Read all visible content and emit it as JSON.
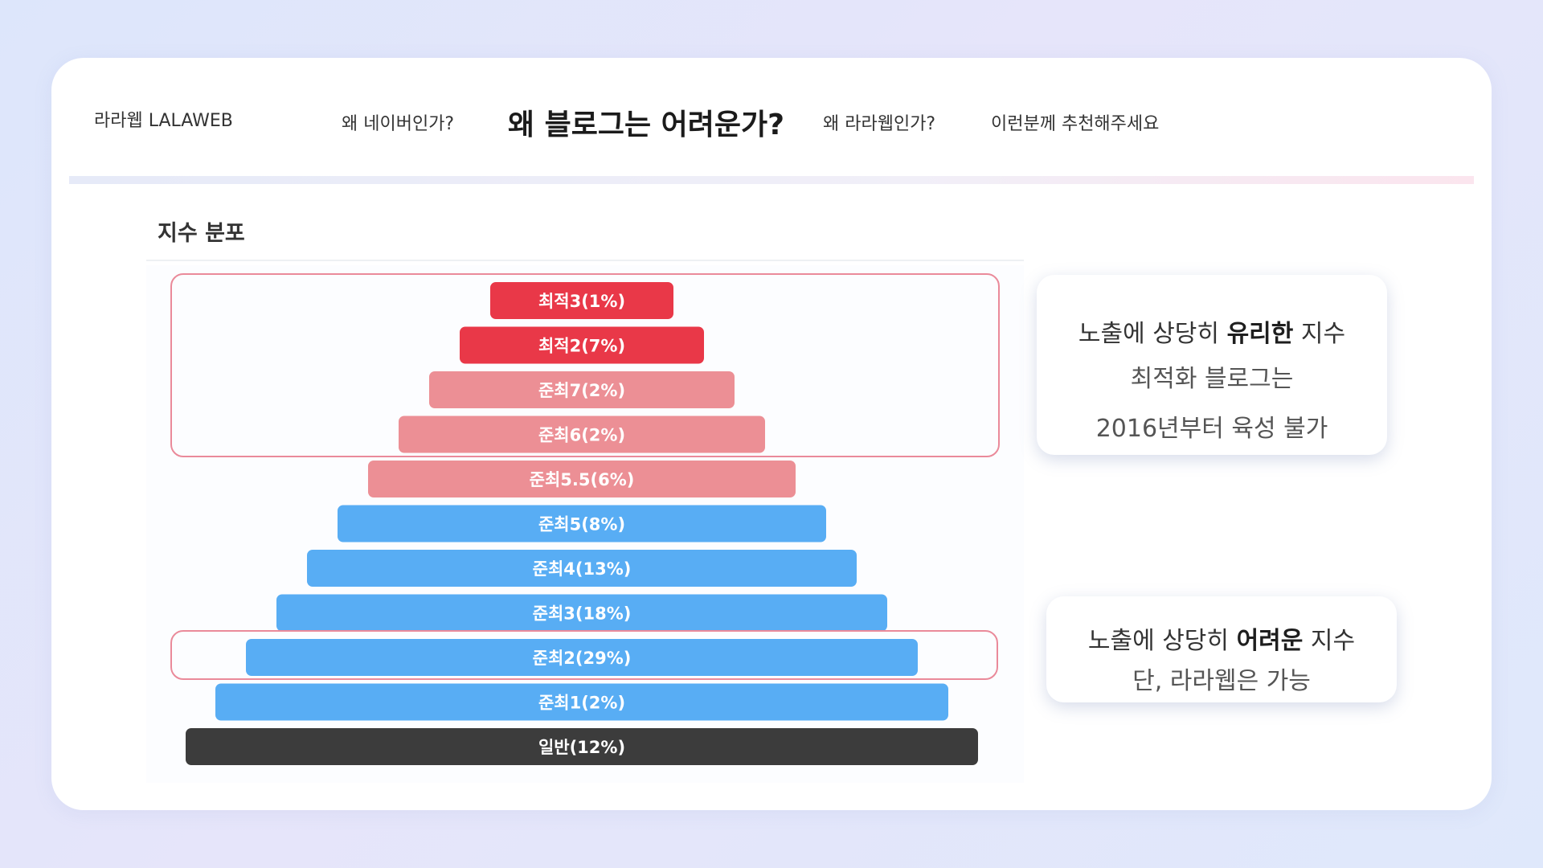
{
  "nav": {
    "brand": "라라웹 LALAWEB",
    "links": [
      "왜 네이버인가?",
      "왜 블로그는 어려운가?",
      "왜 라라웹인가?",
      "이런분께 추천해주세요"
    ]
  },
  "section_title": "지수 분포",
  "colors": {
    "top_red": "#e93848",
    "mid_pink": "#ec8f95",
    "blue": "#58adf4",
    "general_dark": "#3c3c3c",
    "highlight_border": "#ea8a9a"
  },
  "chart_data": {
    "type": "bar",
    "title": "",
    "categories": [
      "최적3(1%)",
      "최적2(7%)",
      "준최7(2%)",
      "준최6(2%)",
      "준최5.5(6%)",
      "준최5(8%)",
      "준최4(13%)",
      "준최3(18%)",
      "준최2(29%)",
      "준최1(2%)",
      "일반(12%)"
    ],
    "values": [
      1,
      7,
      2,
      2,
      6,
      8,
      13,
      18,
      29,
      2,
      12
    ],
    "tiers": [
      "top",
      "top",
      "mid",
      "mid",
      "mid",
      "low",
      "low",
      "low",
      "low",
      "low",
      "base"
    ],
    "unit": "%"
  },
  "callouts": {
    "favorable": {
      "prefix": "노출에 상당히 ",
      "bold": "유리한",
      "suffix": " 지수",
      "line2": "최적화 블로그는",
      "line3": "2016년부터 육성 불가"
    },
    "difficult": {
      "prefix": "노출에 상당히 ",
      "bold": "어려운",
      "suffix": " 지수",
      "line2": "단, 라라웹은 가능"
    }
  }
}
